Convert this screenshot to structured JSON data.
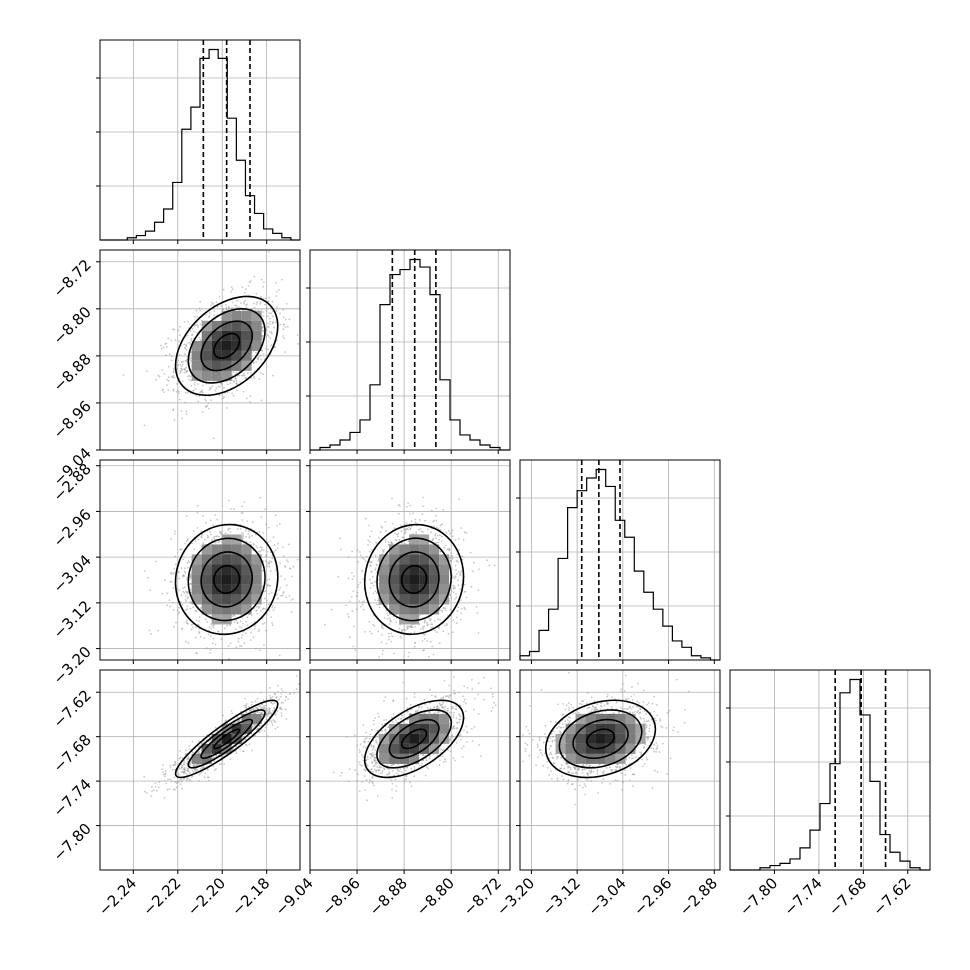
{
  "chart_data": {
    "type": "corner",
    "n_params": 4,
    "grid": true,
    "params": [
      {
        "range": [
          -2.255,
          -2.165
        ],
        "ticks": [
          -2.24,
          -2.22,
          -2.2,
          -2.18
        ],
        "tick_labels": [
          "−2.24",
          "−2.22",
          "−2.20",
          "−2.18"
        ],
        "quantiles": [
          -2.2085,
          -2.198,
          -2.1875
        ],
        "hist_counts": [
          0,
          0,
          0,
          1,
          2,
          4,
          8,
          14,
          26,
          50,
          60,
          82,
          86,
          82,
          55,
          36,
          20,
          12,
          5,
          3,
          1,
          0
        ]
      },
      {
        "range": [
          -9.04,
          -8.7
        ],
        "ticks": [
          -9.04,
          -8.96,
          -8.88,
          -8.8,
          -8.72
        ],
        "tick_labels": [
          "−9.04",
          "−8.96",
          "−8.88",
          "−8.80",
          "−8.72"
        ],
        "quantiles": [
          -8.9,
          -8.862,
          -8.826
        ],
        "hist_counts": [
          0,
          1,
          2,
          4,
          7,
          12,
          26,
          58,
          70,
          72,
          76,
          73,
          62,
          28,
          12,
          6,
          4,
          2,
          1,
          0
        ]
      },
      {
        "range": [
          -3.22,
          -2.87
        ],
        "ticks": [
          -3.2,
          -3.12,
          -3.04,
          -2.96,
          -2.88
        ],
        "tick_labels": [
          "−3.20",
          "−3.12",
          "−3.04",
          "−2.96",
          "−2.88"
        ],
        "quantiles": [
          -3.112,
          -3.082,
          -3.045
        ],
        "hist_counts": [
          2,
          4,
          14,
          24,
          48,
          72,
          80,
          86,
          90,
          82,
          66,
          58,
          42,
          32,
          24,
          16,
          9,
          6,
          2,
          1,
          0
        ]
      },
      {
        "range": [
          -7.86,
          -7.59
        ],
        "ticks": [
          -7.8,
          -7.74,
          -7.68,
          -7.62
        ],
        "tick_labels": [
          "−7.80",
          "−7.74",
          "−7.68",
          "−7.62"
        ],
        "quantiles": [
          -7.718,
          -7.683,
          -7.65
        ],
        "hist_counts": [
          0,
          0,
          0,
          1,
          2,
          3,
          5,
          10,
          18,
          30,
          48,
          80,
          86,
          70,
          40,
          16,
          8,
          4,
          1,
          0
        ]
      }
    ],
    "pairs": [
      {
        "row": 1,
        "col": 0,
        "center": [
          -2.198,
          -8.863
        ],
        "sigma": [
          0.0115,
          0.042
        ],
        "corr": 0.4
      },
      {
        "row": 2,
        "col": 0,
        "center": [
          -2.198,
          -3.079
        ],
        "sigma": [
          0.0115,
          0.048
        ],
        "corr": 0.05
      },
      {
        "row": 2,
        "col": 1,
        "center": [
          -8.863,
          -3.079
        ],
        "sigma": [
          0.042,
          0.048
        ],
        "corr": 0.05
      },
      {
        "row": 3,
        "col": 0,
        "center": [
          -2.198,
          -7.683
        ],
        "sigma": [
          0.0115,
          0.026
        ],
        "corr": 0.9
      },
      {
        "row": 3,
        "col": 1,
        "center": [
          -8.863,
          -7.683
        ],
        "sigma": [
          0.042,
          0.026
        ],
        "corr": 0.55
      },
      {
        "row": 3,
        "col": 2,
        "center": [
          -3.079,
          -7.683
        ],
        "sigma": [
          0.048,
          0.026
        ],
        "corr": 0.25
      }
    ],
    "contour_levels_sigma": [
      0.5,
      1.0,
      1.5,
      2.0
    ],
    "colors": {
      "hist": "#000000",
      "scatter": "#9a9a9a",
      "grid": "#b0b0b0",
      "contour": "#000000"
    }
  }
}
